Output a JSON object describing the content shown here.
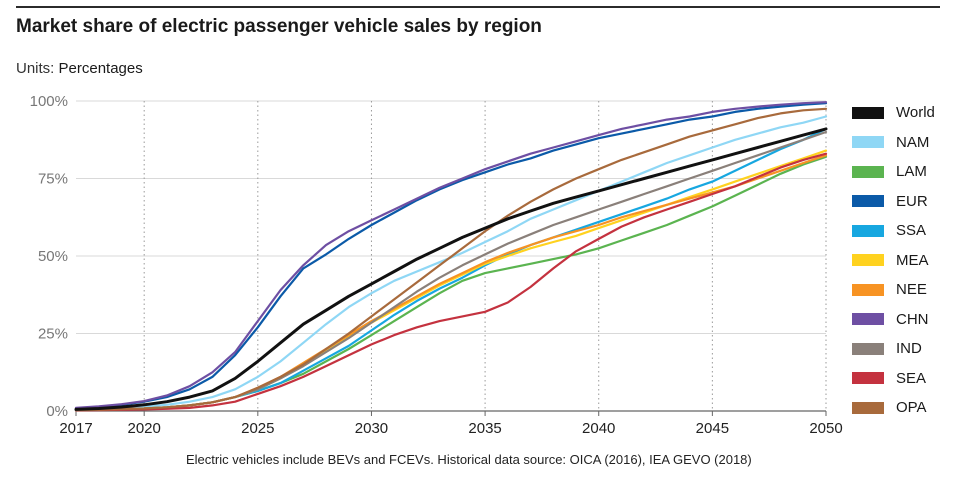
{
  "title": "Market share of electric passenger vehicle sales by region",
  "units_key": "Units:",
  "units_value": "Percentages",
  "footnote": "Electric vehicles include BEVs and FCEVs. Historical data source: OICA (2016), IEA GEVO (2018)",
  "chart_data": {
    "type": "line",
    "title": "Market share of electric passenger vehicle sales by region",
    "xlabel": "",
    "ylabel": "",
    "xlim": [
      2017,
      2050
    ],
    "ylim": [
      0,
      100
    ],
    "x_ticks": [
      2017,
      2020,
      2025,
      2030,
      2035,
      2040,
      2045,
      2050
    ],
    "y_ticks": [
      0,
      25,
      50,
      75,
      100
    ],
    "y_tick_labels": [
      "0%",
      "25%",
      "50%",
      "75%",
      "100%"
    ],
    "grid": "vertical dotted at x ticks, horizontal solid at y ticks",
    "legend": "right",
    "x": [
      2017,
      2018,
      2019,
      2020,
      2021,
      2022,
      2023,
      2024,
      2025,
      2026,
      2027,
      2028,
      2029,
      2030,
      2031,
      2032,
      2033,
      2034,
      2035,
      2036,
      2037,
      2038,
      2039,
      2040,
      2041,
      2042,
      2043,
      2044,
      2045,
      2046,
      2047,
      2048,
      2049,
      2050
    ],
    "series": [
      {
        "name": "World",
        "color": "#111111",
        "values": [
          0.5,
          0.8,
          1.3,
          2.0,
          3.0,
          4.5,
          6.5,
          10.5,
          16,
          22,
          28,
          32.5,
          37,
          41,
          45,
          49,
          52.5,
          56,
          59,
          62,
          64.5,
          67,
          69,
          71,
          73,
          75,
          77,
          79,
          81,
          83,
          85,
          87,
          89,
          91
        ]
      },
      {
        "name": "NAM",
        "color": "#8fd7f5",
        "values": [
          0.5,
          0.7,
          1.0,
          1.5,
          2.0,
          3.0,
          4.5,
          7,
          11,
          16,
          22,
          28,
          33.5,
          38,
          42,
          45,
          48,
          51,
          54.5,
          58,
          62,
          65,
          68,
          71,
          74,
          77,
          80,
          82.5,
          85,
          87.5,
          89.5,
          91.5,
          93,
          95
        ]
      },
      {
        "name": "LAM",
        "color": "#5bb450",
        "values": [
          0.3,
          0.4,
          0.6,
          0.8,
          1.2,
          1.8,
          2.8,
          4.5,
          6.5,
          9,
          12,
          16,
          20,
          24.5,
          29,
          33.5,
          38,
          42,
          44.5,
          46,
          47.5,
          49,
          50.5,
          52.5,
          55,
          57.5,
          60,
          63,
          66,
          69.5,
          73,
          76.5,
          79.5,
          82
        ]
      },
      {
        "name": "EUR",
        "color": "#0b5aa8",
        "values": [
          0.8,
          1.2,
          2.0,
          3.0,
          4.5,
          7,
          11,
          18,
          27,
          37,
          46,
          50.5,
          55.5,
          60,
          64,
          68,
          71.5,
          74.5,
          77,
          79.5,
          81.5,
          84,
          86,
          88,
          89.5,
          91,
          92.5,
          94,
          95,
          96.5,
          97.5,
          98.2,
          98.8,
          99.3
        ]
      },
      {
        "name": "SSA",
        "color": "#17a7e0",
        "values": [
          0.3,
          0.4,
          0.6,
          0.8,
          1.2,
          1.8,
          2.8,
          4.5,
          6.5,
          9,
          13,
          17,
          21,
          26,
          31,
          35.5,
          39.5,
          43,
          47,
          50.5,
          53.5,
          56,
          58.5,
          61,
          63.5,
          66,
          68.5,
          71.5,
          74,
          77.5,
          81,
          84.5,
          87.5,
          91
        ]
      },
      {
        "name": "MEA",
        "color": "#ffd21f",
        "values": [
          0.3,
          0.4,
          0.6,
          0.8,
          1.2,
          1.8,
          2.8,
          4.5,
          7,
          10.5,
          15,
          19.5,
          24,
          28.5,
          32.5,
          36.5,
          40.5,
          44,
          47.5,
          50,
          52.5,
          54.5,
          56.5,
          59,
          61.5,
          64,
          66.5,
          69,
          71.5,
          74,
          76.5,
          79,
          81.5,
          84
        ]
      },
      {
        "name": "NEE",
        "color": "#f79323",
        "values": [
          0.3,
          0.4,
          0.6,
          0.8,
          1.2,
          1.8,
          2.8,
          4.5,
          7.5,
          11,
          15.5,
          20,
          24.5,
          29,
          33,
          37,
          41,
          44.5,
          48,
          51,
          53.5,
          56,
          58,
          60,
          62.5,
          64.5,
          66.5,
          68.5,
          70.5,
          72.5,
          75,
          77.5,
          80,
          82.5
        ]
      },
      {
        "name": "CHN",
        "color": "#6e4fa3",
        "values": [
          1.0,
          1.5,
          2.2,
          3.2,
          5,
          8,
          12.5,
          19,
          29,
          39,
          47,
          53.5,
          58,
          61.5,
          65,
          68.5,
          72,
          75,
          78,
          80.5,
          83,
          85,
          87,
          89,
          91,
          92.5,
          94,
          95,
          96.5,
          97.5,
          98.2,
          98.8,
          99.3,
          99.6
        ]
      },
      {
        "name": "IND",
        "color": "#8a807a",
        "values": [
          0.3,
          0.4,
          0.6,
          0.8,
          1.2,
          1.8,
          2.8,
          4.5,
          7,
          10.5,
          14.5,
          19,
          23.5,
          28.5,
          33.5,
          38.5,
          43,
          47,
          50.5,
          54,
          57,
          60,
          62.5,
          65,
          67.5,
          70,
          72.5,
          75,
          77.5,
          80,
          82.5,
          85,
          87.5,
          90
        ]
      },
      {
        "name": "SEA",
        "color": "#c4323f",
        "values": [
          0.2,
          0.3,
          0.4,
          0.5,
          0.7,
          1.0,
          1.8,
          3,
          5.5,
          8,
          11,
          14.5,
          18,
          21.5,
          24.5,
          27,
          29,
          30.5,
          32,
          35,
          40,
          46,
          51.5,
          55.5,
          59.5,
          62.5,
          65,
          67.5,
          70,
          72.5,
          75.5,
          78.5,
          81,
          83
        ]
      },
      {
        "name": "OPA",
        "color": "#a86a3c",
        "values": [
          0.3,
          0.4,
          0.6,
          0.8,
          1.2,
          1.8,
          2.8,
          4.5,
          7.5,
          11,
          15,
          20,
          25,
          30.5,
          36,
          41.5,
          47,
          52.5,
          58,
          63,
          67.5,
          71.5,
          75,
          78,
          81,
          83.5,
          86,
          88.5,
          90.5,
          92.5,
          94.5,
          96,
          97,
          97.5
        ]
      }
    ]
  }
}
